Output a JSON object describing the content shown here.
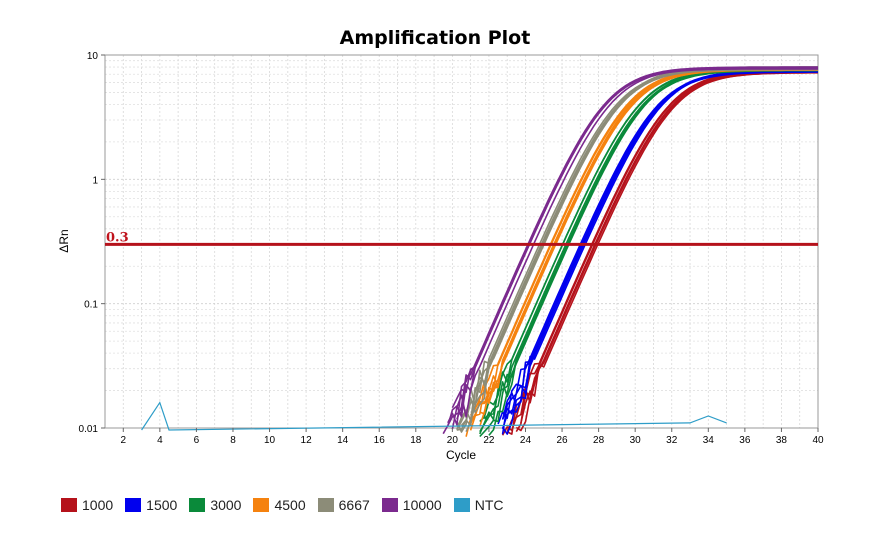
{
  "chart_data": {
    "type": "line",
    "title": "Amplification Plot",
    "xlabel": "Cycle",
    "ylabel": "ΔRn",
    "xlim": [
      1,
      40
    ],
    "ylim": [
      0.01,
      10
    ],
    "y_scale": "log",
    "x_ticks": [
      2,
      4,
      6,
      8,
      10,
      12,
      14,
      16,
      18,
      20,
      22,
      24,
      26,
      28,
      30,
      32,
      34,
      36,
      38,
      40
    ],
    "y_ticks": [
      0.01,
      0.1,
      1,
      10
    ],
    "y_tick_labels": [
      "0.01",
      "0.1",
      "1",
      "10"
    ],
    "grid": true,
    "legend_position": "bottom",
    "threshold": {
      "value": 0.3,
      "label": "0.3",
      "color": "#b5121b"
    },
    "series": [
      {
        "name": "1000",
        "color": "#b5121b",
        "ct": 27.8,
        "plateau": 7.3,
        "replicates": 6
      },
      {
        "name": "1500",
        "color": "#0000ee",
        "ct": 27.1,
        "plateau": 7.5,
        "replicates": 6
      },
      {
        "name": "3000",
        "color": "#0a8a3a",
        "ct": 26.2,
        "plateau": 7.6,
        "replicates": 6
      },
      {
        "name": "4500",
        "color": "#f5820f",
        "ct": 25.5,
        "plateau": 7.7,
        "replicates": 6
      },
      {
        "name": "6667",
        "color": "#8c8c78",
        "ct": 24.9,
        "plateau": 7.8,
        "replicates": 6
      },
      {
        "name": "10000",
        "color": "#7b2a8e",
        "ct": 24.3,
        "plateau": 7.9,
        "replicates": 6
      },
      {
        "name": "NTC",
        "color": "#2e9dc8",
        "noise_points": [
          [
            3,
            0.009
          ],
          [
            4,
            0.016
          ],
          [
            4.5,
            0.009
          ],
          [
            33,
            0.011
          ],
          [
            34,
            0.0125
          ],
          [
            35,
            0.011
          ]
        ]
      }
    ]
  }
}
